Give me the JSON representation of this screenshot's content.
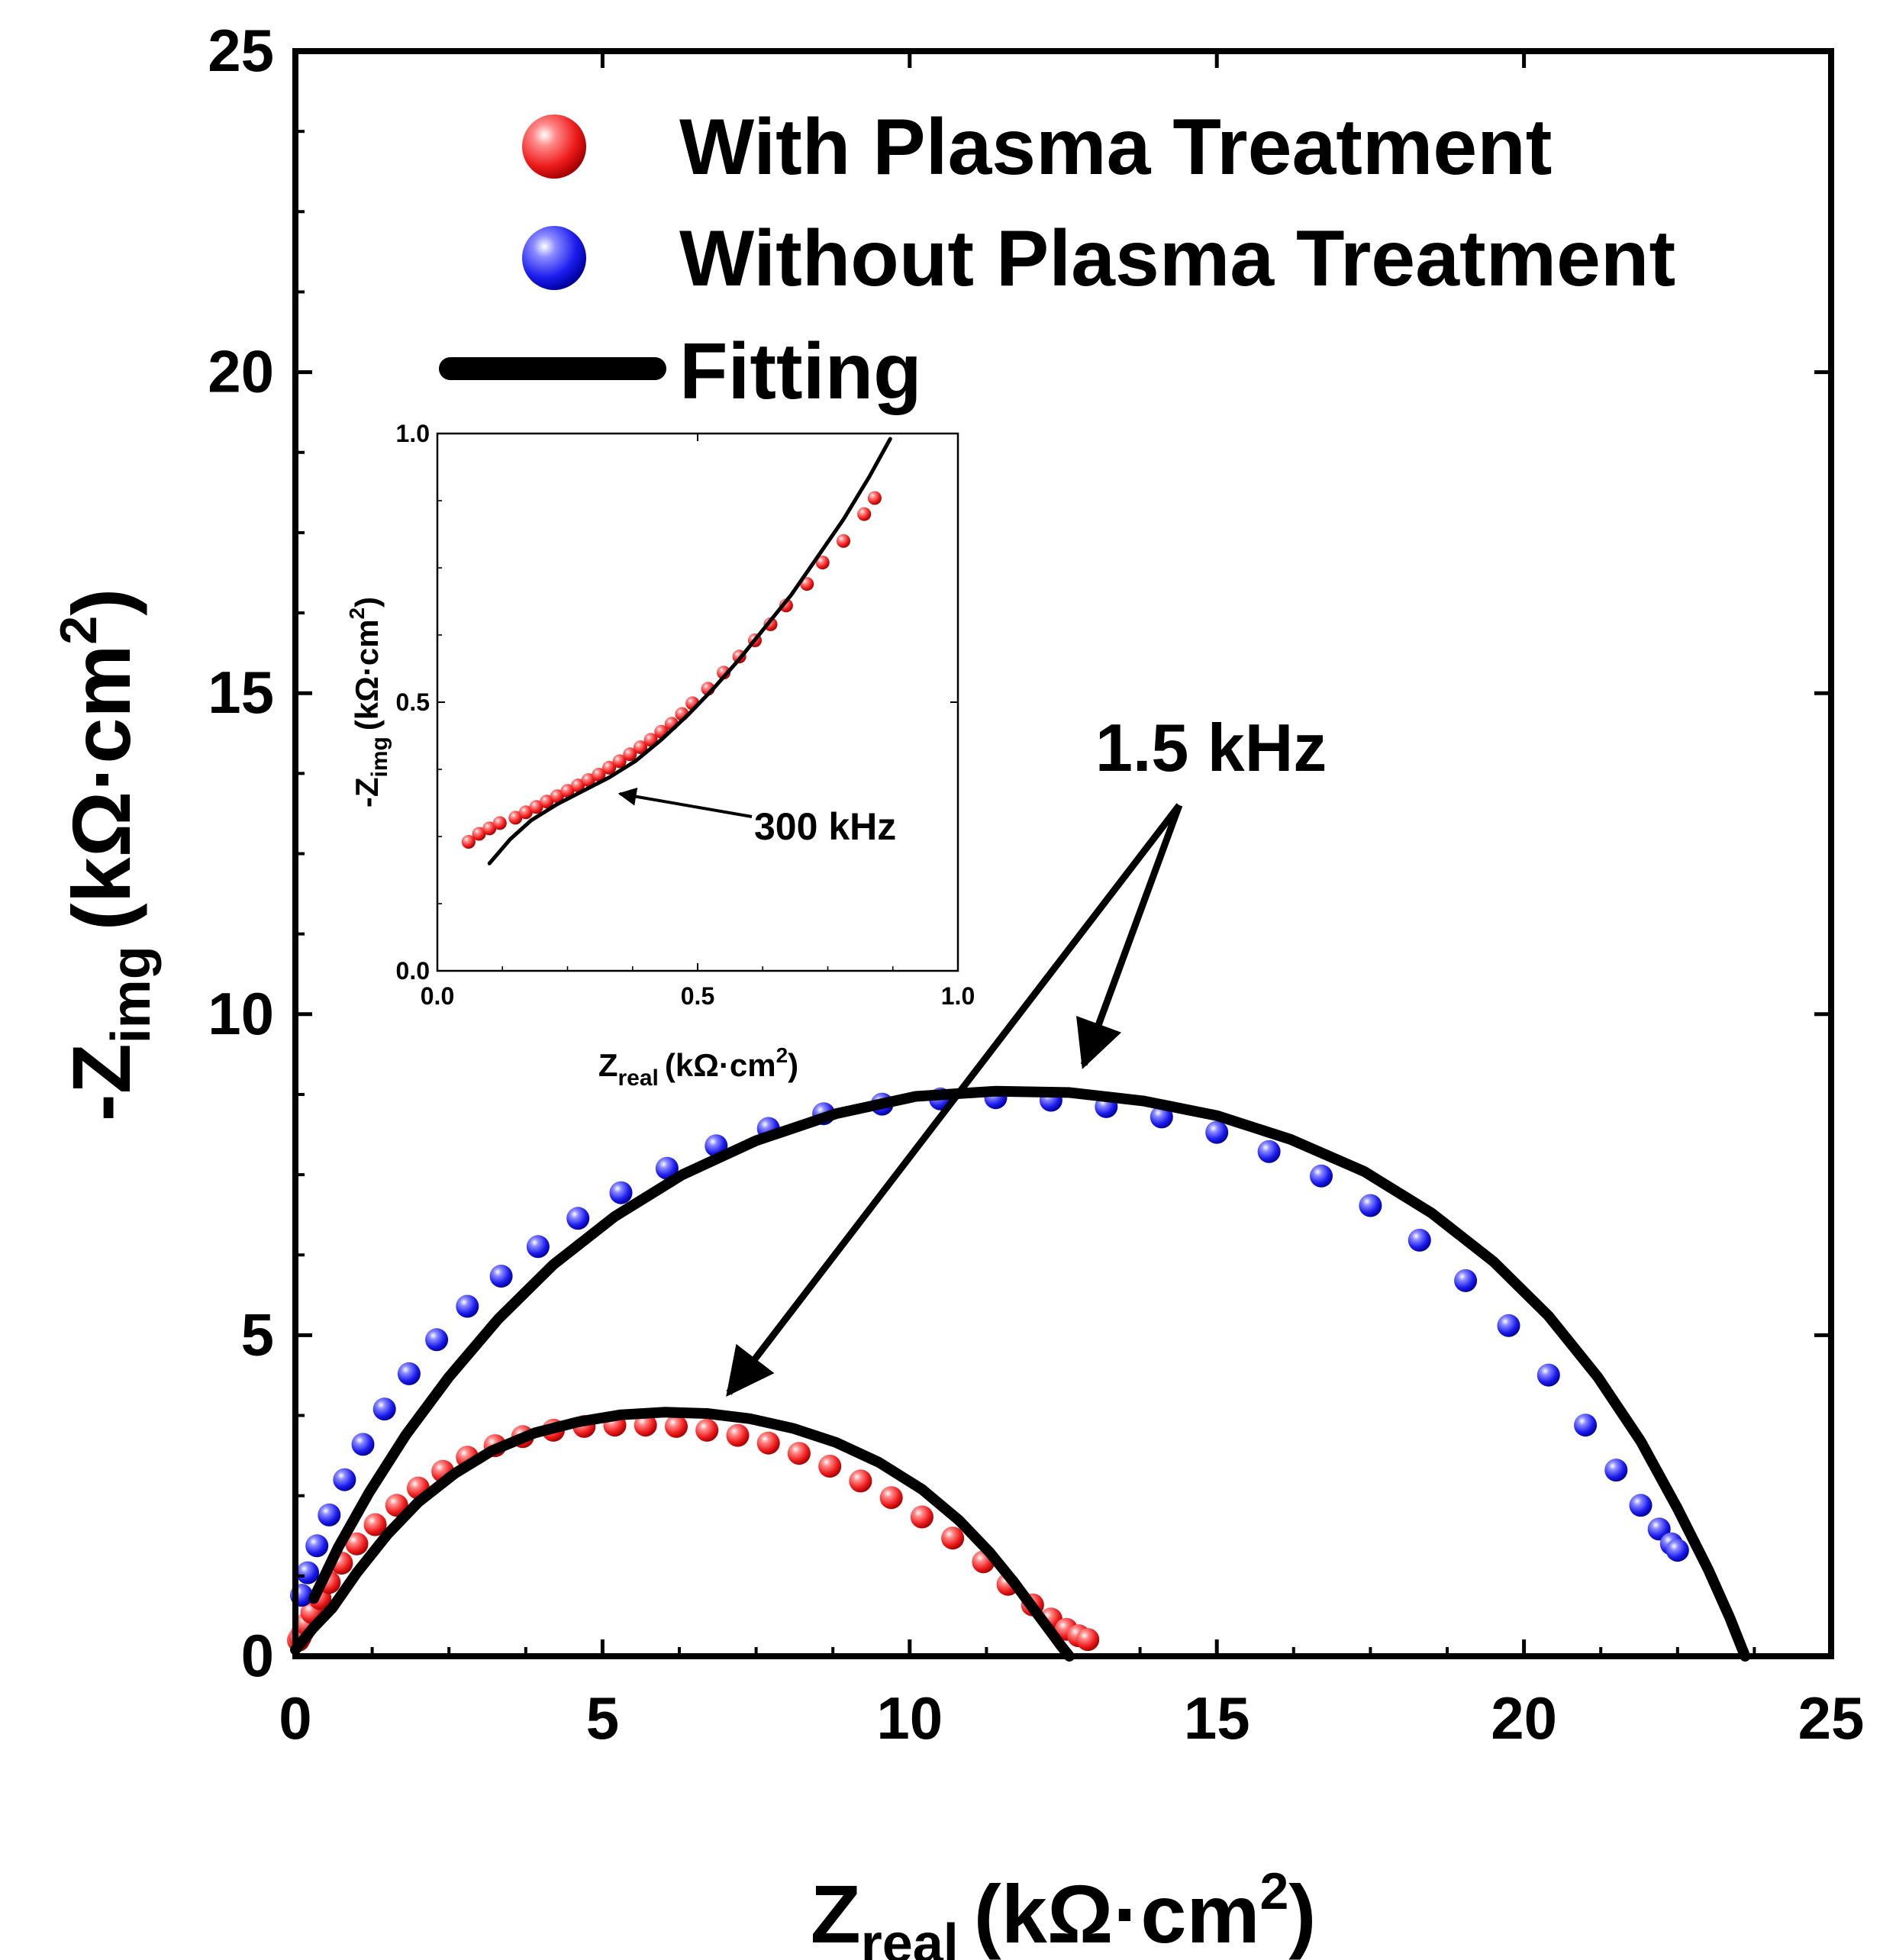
{
  "chart_data": [
    {
      "type": "scatter",
      "role": "main",
      "xlabel_main": "Z",
      "xlabel_sub": "real",
      "xlabel_unit": "(kΩ·cm",
      "xlabel_sup": "2",
      "xlabel_close": ")",
      "ylabel_main": "-Z",
      "ylabel_sub": "img",
      "ylabel_unit": "(kΩ·cm",
      "ylabel_sup": "2",
      "ylabel_close": ")",
      "xlim": [
        0,
        25
      ],
      "ylim": [
        0,
        25
      ],
      "xticks": [
        0,
        5,
        10,
        15,
        20,
        25
      ],
      "yticks": [
        0,
        5,
        10,
        15,
        20,
        25
      ],
      "xtick_labels": [
        "0",
        "5",
        "10",
        "15",
        "20",
        "25"
      ],
      "ytick_labels": [
        "0",
        "5",
        "10",
        "15",
        "20",
        "25"
      ],
      "legend_position": "top-right",
      "series": [
        {
          "name": "With Plasma Treatment",
          "kind": "points",
          "color": "#ee1c1c",
          "x": [
            0.05,
            0.08,
            0.12,
            0.18,
            0.27,
            0.4,
            0.55,
            0.75,
            1.0,
            1.3,
            1.65,
            2.0,
            2.4,
            2.8,
            3.25,
            3.7,
            4.2,
            4.7,
            5.2,
            5.7,
            6.2,
            6.7,
            7.2,
            7.7,
            8.2,
            8.7,
            9.2,
            9.7,
            10.2,
            10.7,
            11.2,
            11.6,
            12.0,
            12.3,
            12.55,
            12.75,
            12.9
          ],
          "y": [
            0.25,
            0.3,
            0.38,
            0.5,
            0.68,
            0.9,
            1.15,
            1.45,
            1.75,
            2.05,
            2.35,
            2.62,
            2.88,
            3.1,
            3.28,
            3.42,
            3.52,
            3.58,
            3.6,
            3.6,
            3.58,
            3.52,
            3.44,
            3.32,
            3.16,
            2.96,
            2.73,
            2.47,
            2.17,
            1.84,
            1.47,
            1.12,
            0.8,
            0.58,
            0.42,
            0.32,
            0.26
          ]
        },
        {
          "name": "Without Plasma Treatment",
          "kind": "points",
          "color": "#1c1cee",
          "x": [
            0.1,
            0.2,
            0.35,
            0.55,
            0.8,
            1.1,
            1.45,
            1.85,
            2.3,
            2.8,
            3.35,
            3.95,
            4.6,
            5.3,
            6.05,
            6.85,
            7.7,
            8.6,
            9.55,
            10.5,
            11.4,
            12.3,
            13.2,
            14.1,
            15.0,
            15.85,
            16.7,
            17.5,
            18.3,
            19.05,
            19.75,
            20.4,
            21.0,
            21.5,
            21.9,
            22.2,
            22.4,
            22.5
          ],
          "y": [
            0.95,
            1.3,
            1.72,
            2.2,
            2.75,
            3.3,
            3.85,
            4.4,
            4.93,
            5.45,
            5.92,
            6.38,
            6.82,
            7.22,
            7.6,
            7.95,
            8.22,
            8.45,
            8.6,
            8.68,
            8.7,
            8.66,
            8.56,
            8.4,
            8.16,
            7.86,
            7.48,
            7.02,
            6.48,
            5.85,
            5.15,
            4.38,
            3.6,
            2.9,
            2.35,
            1.98,
            1.75,
            1.65
          ]
        },
        {
          "name": "Fitting",
          "kind": "line",
          "color": "#000000",
          "x": [
            0.0,
            0.3,
            0.6,
            1.0,
            1.5,
            2.0,
            2.6,
            3.2,
            3.9,
            4.6,
            5.3,
            6.0,
            6.7,
            7.4,
            8.1,
            8.8,
            9.5,
            10.2,
            10.8,
            11.3,
            11.7,
            12.0,
            12.25,
            12.45,
            12.6
          ],
          "y": [
            0.1,
            0.45,
            0.75,
            1.3,
            1.9,
            2.4,
            2.85,
            3.2,
            3.48,
            3.65,
            3.76,
            3.8,
            3.78,
            3.7,
            3.55,
            3.33,
            3.02,
            2.6,
            2.12,
            1.62,
            1.15,
            0.76,
            0.44,
            0.18,
            0.0
          ]
        },
        {
          "name": "Fitting",
          "kind": "line",
          "color": "#000000",
          "x": [
            0.3,
            0.7,
            1.2,
            1.8,
            2.5,
            3.3,
            4.2,
            5.2,
            6.3,
            7.5,
            8.8,
            10.1,
            11.4,
            12.6,
            13.8,
            15.0,
            16.2,
            17.4,
            18.5,
            19.5,
            20.4,
            21.2,
            21.9,
            22.5,
            23.0,
            23.35,
            23.6
          ],
          "y": [
            0.9,
            1.7,
            2.55,
            3.45,
            4.35,
            5.25,
            6.1,
            6.85,
            7.5,
            8.03,
            8.45,
            8.72,
            8.8,
            8.78,
            8.65,
            8.42,
            8.05,
            7.55,
            6.9,
            6.15,
            5.3,
            4.35,
            3.35,
            2.3,
            1.35,
            0.6,
            0.0
          ]
        }
      ]
    },
    {
      "type": "scatter",
      "role": "inset",
      "xlabel_main": "Z",
      "xlabel_sub": "real",
      "xlabel_unit": "(kΩ·cm",
      "xlabel_sup": "2",
      "xlabel_close": ")",
      "ylabel_main": "-Z",
      "ylabel_sub": "img",
      "ylabel_unit": "(kΩ·cm",
      "ylabel_sup": "2",
      "ylabel_close": ")",
      "xlim": [
        0.0,
        1.0
      ],
      "ylim": [
        0.0,
        1.0
      ],
      "xticks": [
        0.0,
        0.5,
        1.0
      ],
      "yticks": [
        0.0,
        0.5,
        1.0
      ],
      "xtick_labels": [
        "0.0",
        "0.5",
        "1.0"
      ],
      "ytick_labels": [
        "0.0",
        "0.5",
        "1.0"
      ],
      "series": [
        {
          "name": "With Plasma Treatment",
          "kind": "points",
          "color": "#ee1c1c",
          "x": [
            0.06,
            0.08,
            0.1,
            0.12,
            0.15,
            0.17,
            0.19,
            0.21,
            0.23,
            0.25,
            0.27,
            0.29,
            0.31,
            0.33,
            0.35,
            0.37,
            0.39,
            0.41,
            0.43,
            0.45,
            0.47,
            0.49,
            0.52,
            0.55,
            0.58,
            0.61,
            0.64,
            0.67,
            0.71,
            0.74,
            0.78,
            0.82,
            0.84
          ],
          "y": [
            0.24,
            0.255,
            0.265,
            0.275,
            0.285,
            0.295,
            0.305,
            0.315,
            0.325,
            0.335,
            0.345,
            0.355,
            0.365,
            0.378,
            0.39,
            0.403,
            0.416,
            0.43,
            0.445,
            0.46,
            0.478,
            0.498,
            0.525,
            0.555,
            0.585,
            0.615,
            0.645,
            0.68,
            0.72,
            0.76,
            0.8,
            0.85,
            0.88
          ]
        },
        {
          "name": "Fitting",
          "kind": "line",
          "color": "#000000",
          "x": [
            0.1,
            0.14,
            0.18,
            0.23,
            0.28,
            0.33,
            0.38,
            0.43,
            0.48,
            0.53,
            0.58,
            0.63,
            0.68,
            0.73,
            0.78,
            0.83,
            0.87
          ],
          "y": [
            0.2,
            0.245,
            0.28,
            0.31,
            0.335,
            0.36,
            0.39,
            0.43,
            0.475,
            0.525,
            0.58,
            0.64,
            0.7,
            0.77,
            0.84,
            0.92,
            0.99
          ]
        }
      ]
    }
  ],
  "legend": [
    {
      "label": "With Plasma Treatment",
      "kind": "ball",
      "color": "#ee1c1c"
    },
    {
      "label": "Without Plasma Treatment",
      "kind": "ball",
      "color": "#1c1cee"
    },
    {
      "label": "Fitting",
      "kind": "line",
      "color": "#000000"
    }
  ],
  "annotations": {
    "main_label": "1.5 kHz",
    "inset_label": "300 kHz"
  },
  "colors": {
    "red_highlight": "#ffd0d0",
    "blue_highlight": "#d6d6ff",
    "axis": "#000000"
  }
}
